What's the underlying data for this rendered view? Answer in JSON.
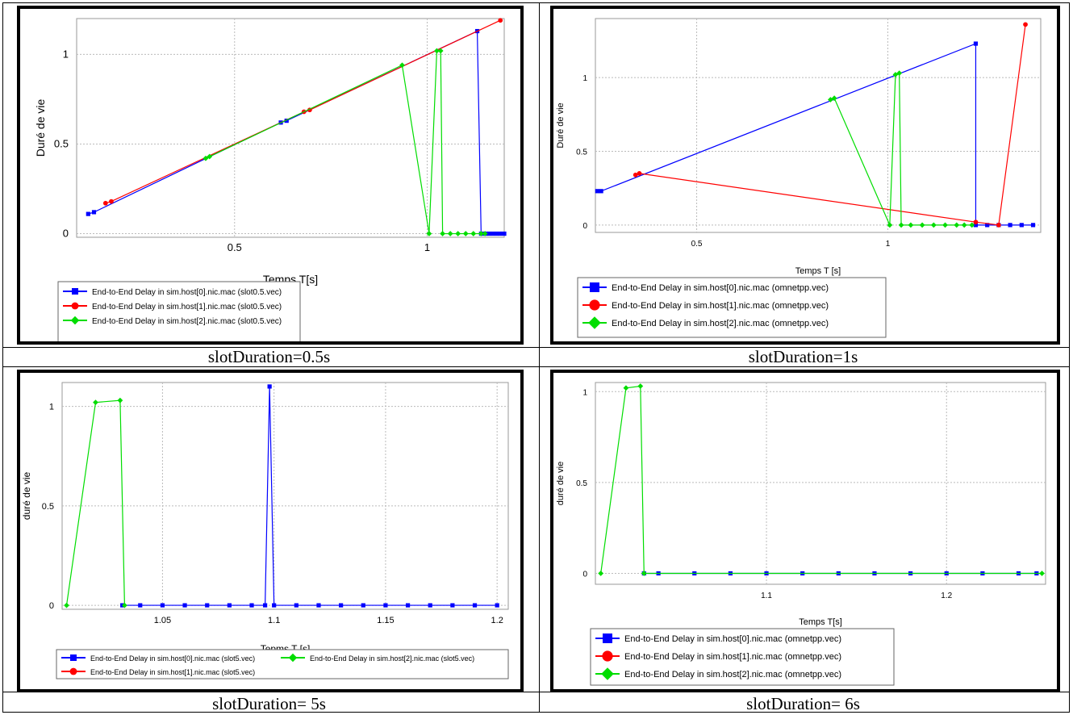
{
  "captions": [
    "slotDuration=0.5s",
    "slotDuration=1s",
    "slotDuration= 5s",
    "slotDuration= 6s"
  ],
  "chart_data": [
    {
      "type": "line",
      "xlabel": "Temps T[s]",
      "ylabel": "Duré de vie",
      "xlim": [
        0.09,
        1.2
      ],
      "ylim": [
        -0.02,
        1.2
      ],
      "xticks": [
        0.5,
        1
      ],
      "yticks": [
        0,
        0.5,
        1
      ],
      "legend": "bottom-left",
      "legend_layout": "column",
      "grid": true,
      "series": [
        {
          "name": "End-to-End Delay in sim.host[0].nic.mac (slot0.5.vec)",
          "color": "#0000ff",
          "marker": "square",
          "x": [
            0.12,
            0.135,
            0.62,
            0.635,
            1.13,
            1.14,
            1.15,
            1.16,
            1.17,
            1.18,
            1.19,
            1.2
          ],
          "y": [
            0.11,
            0.12,
            0.62,
            0.63,
            1.13,
            0,
            0,
            0,
            0,
            0,
            0,
            0
          ]
        },
        {
          "name": "End-to-End Delay in sim.host[1].nic.mac (slot0.5.vec)",
          "color": "#ff0000",
          "marker": "circle",
          "x": [
            0.165,
            0.18,
            0.68,
            0.695,
            1.19
          ],
          "y": [
            0.17,
            0.18,
            0.68,
            0.69,
            1.19
          ]
        },
        {
          "name": "End-to-End Delay in sim.host[2].nic.mac (slot0.5.vec)",
          "color": "#00dd00",
          "marker": "diamond",
          "x": [
            0.425,
            0.435,
            0.935,
            1.005,
            1.025,
            1.035,
            1.04,
            1.06,
            1.08,
            1.1,
            1.12,
            1.14,
            1.15
          ],
          "y": [
            0.42,
            0.43,
            0.94,
            0,
            1.02,
            1.02,
            0,
            0,
            0,
            0,
            0,
            0,
            0
          ]
        }
      ]
    },
    {
      "type": "line",
      "xlabel": "Temps T [s]",
      "ylabel": "Duré de vie",
      "xlim": [
        0.235,
        1.4
      ],
      "ylim": [
        -0.05,
        1.4
      ],
      "xticks": [
        0.5,
        1
      ],
      "yticks": [
        0,
        0.5,
        1
      ],
      "legend": "bottom-left",
      "legend_layout": "column",
      "grid": true,
      "series": [
        {
          "name": "End-to-End Delay in sim.host[0].nic.mac (omnetpp.vec)",
          "color": "#0000ff",
          "marker": "square",
          "x": [
            0.24,
            0.25,
            1.23,
            1.23,
            1.26,
            1.29,
            1.32,
            1.35,
            1.38
          ],
          "y": [
            0.23,
            0.23,
            1.23,
            0,
            0,
            0,
            0,
            0,
            0
          ]
        },
        {
          "name": "End-to-End Delay in sim.host[1].nic.mac (omnetpp.vec)",
          "color": "#ff0000",
          "marker": "circle",
          "x": [
            0.34,
            0.35,
            1.23,
            1.29,
            1.36
          ],
          "y": [
            0.34,
            0.35,
            0.02,
            0,
            1.36
          ]
        },
        {
          "name": "End-to-End Delay in sim.host[2].nic.mac (omnetpp.vec)",
          "color": "#00dd00",
          "marker": "diamond",
          "x": [
            0.85,
            0.86,
            1.005,
            1.02,
            1.03,
            1.035,
            1.06,
            1.09,
            1.12,
            1.15,
            1.18,
            1.2,
            1.22
          ],
          "y": [
            0.85,
            0.86,
            0,
            1.02,
            1.03,
            0,
            0,
            0,
            0,
            0,
            0,
            0,
            0
          ]
        }
      ]
    },
    {
      "type": "line",
      "xlabel": "Tepms T [s]",
      "ylabel": "duré de vie",
      "xlim": [
        1.005,
        1.205
      ],
      "ylim": [
        -0.02,
        1.12
      ],
      "xticks": [
        1.05,
        1.1,
        1.15,
        1.2
      ],
      "yticks": [
        0,
        0.5,
        1
      ],
      "legend": "bottom",
      "legend_layout": "grid2",
      "grid": true,
      "series": [
        {
          "name": "End-to-End Delay in sim.host[0].nic.mac (slot5.vec)",
          "color": "#0000ff",
          "marker": "square",
          "x": [
            1.032,
            1.04,
            1.05,
            1.06,
            1.07,
            1.08,
            1.09,
            1.096,
            1.098,
            1.1,
            1.11,
            1.12,
            1.13,
            1.14,
            1.15,
            1.16,
            1.17,
            1.18,
            1.19,
            1.2
          ],
          "y": [
            0,
            0,
            0,
            0,
            0,
            0,
            0,
            0,
            1.1,
            0,
            0,
            0,
            0,
            0,
            0,
            0,
            0,
            0,
            0,
            0
          ]
        },
        {
          "name": "End-to-End Delay in sim.host[1].nic.mac (slot5.vec)",
          "color": "#ff0000",
          "marker": "circle",
          "x": [],
          "y": []
        },
        {
          "name": "End-to-End Delay in sim.host[2].nic.mac (slot5.vec)",
          "color": "#00dd00",
          "marker": "diamond",
          "x": [
            1.007,
            1.02,
            1.031,
            1.033
          ],
          "y": [
            0,
            1.02,
            1.03,
            0
          ]
        }
      ]
    },
    {
      "type": "line",
      "xlabel": "Temps T[s]",
      "ylabel": "duré de vie",
      "xlim": [
        1.005,
        1.255
      ],
      "ylim": [
        -0.06,
        1.05
      ],
      "xticks": [
        1.1,
        1.2
      ],
      "yticks": [
        0,
        0.5,
        1
      ],
      "legend": "bottom-left",
      "legend_layout": "column",
      "grid": true,
      "series": [
        {
          "name": "End-to-End Delay in sim.host[0].nic.mac (omnetpp.vec)",
          "color": "#0000ff",
          "marker": "square",
          "x": [
            1.032,
            1.04,
            1.06,
            1.08,
            1.1,
            1.12,
            1.14,
            1.16,
            1.18,
            1.2,
            1.22,
            1.24,
            1.25
          ],
          "y": [
            0,
            0,
            0,
            0,
            0,
            0,
            0,
            0,
            0,
            0,
            0,
            0,
            0
          ]
        },
        {
          "name": "End-to-End Delay in sim.host[1].nic.mac (omnetpp.vec)",
          "color": "#ff0000",
          "marker": "circle",
          "x": [],
          "y": []
        },
        {
          "name": "End-to-End Delay in sim.host[2].nic.mac (omnetpp.vec)",
          "color": "#00dd00",
          "marker": "diamond",
          "x": [
            1.008,
            1.022,
            1.03,
            1.032,
            1.253
          ],
          "y": [
            0,
            1.02,
            1.03,
            0,
            0
          ]
        }
      ]
    }
  ]
}
